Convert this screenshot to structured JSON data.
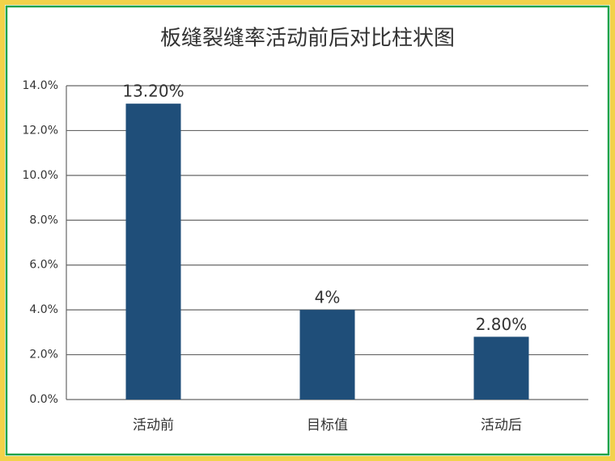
{
  "chart_data": {
    "type": "bar",
    "title": "板缝裂缝率活动前后对比柱状图",
    "categories": [
      "活动前",
      "目标值",
      "活动后"
    ],
    "values": [
      13.2,
      4,
      2.8
    ],
    "value_labels": [
      "13.20%",
      "4%",
      "2.80%"
    ],
    "color": "#1f4e79",
    "ylim": [
      0,
      14
    ],
    "yticks": [
      {
        "value": 0,
        "label": "0.0%"
      },
      {
        "value": 2,
        "label": "2.0%"
      },
      {
        "value": 4,
        "label": "4.0%"
      },
      {
        "value": 6,
        "label": "6.0%"
      },
      {
        "value": 8,
        "label": "8.0%"
      },
      {
        "value": 10,
        "label": "10.0%"
      },
      {
        "value": 12,
        "label": "12.0%"
      },
      {
        "value": 14,
        "label": "14.0%"
      }
    ],
    "grid": true
  }
}
